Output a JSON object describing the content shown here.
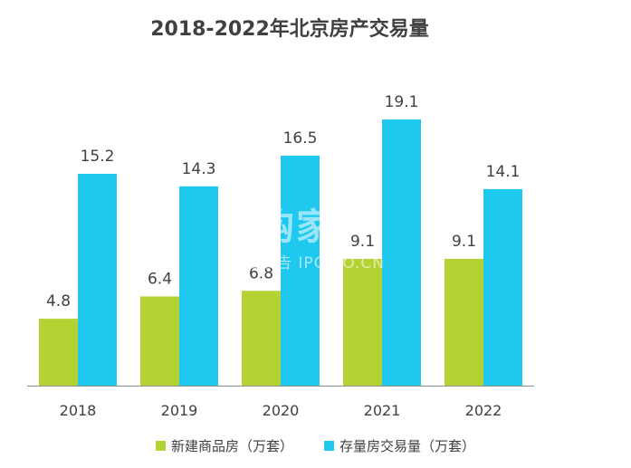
{
  "chart_data": {
    "type": "bar",
    "title": "2018-2022年北京房产交易量",
    "categories": [
      "2018",
      "2019",
      "2020",
      "2021",
      "2022"
    ],
    "series": [
      {
        "name": "新建商品房（万套）",
        "values": [
          4.8,
          6.4,
          6.8,
          9.1,
          9.1
        ],
        "color": "#b3d334"
      },
      {
        "name": "存量房交易量（万套）",
        "values": [
          15.2,
          14.3,
          16.5,
          19.1,
          14.1
        ],
        "color": "#1fc8ef"
      }
    ],
    "ylim": [
      0,
      21.5
    ],
    "grid": false,
    "legend_position": "bottom"
  },
  "watermark": {
    "brand": "并购家",
    "sub": "行业报告 IPOIPO.CN"
  }
}
